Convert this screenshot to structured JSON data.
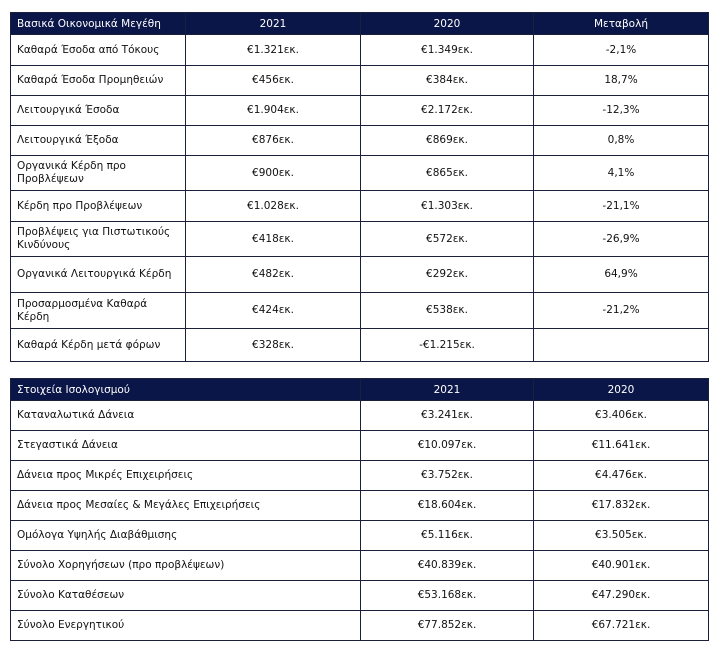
{
  "table1": {
    "header": [
      "Βασικά Οικονομικά Μεγέθη",
      "2021",
      "2020",
      "Μεταβολή"
    ],
    "rows": [
      [
        "Καθαρά Έσοδα από Τόκους",
        "€1.321εκ.",
        "€1.349εκ.",
        "-2,1%"
      ],
      [
        "Καθαρά Έσοδα Προμηθειών",
        "€456εκ.",
        "€384εκ.",
        "18,7%"
      ],
      [
        "Λειτουργικά Έσοδα",
        "€1.904εκ.",
        "€2.172εκ.",
        "-12,3%"
      ],
      [
        "Λειτουργικά Έξοδα",
        "€876εκ.",
        "€869εκ.",
        "0,8%"
      ],
      [
        "Οργανικά Κέρδη προ Προβλέψεων",
        "€900εκ.",
        "€865εκ.",
        "4,1%"
      ],
      [
        "Κέρδη προ Προβλέψεων",
        "€1.028εκ.",
        "€1.303εκ.",
        "-21,1%"
      ],
      [
        "Προβλέψεις για Πιστωτικούς Κινδύνους",
        "€418εκ.",
        "€572εκ.",
        "-26,9%"
      ],
      [
        "Οργανικά Λειτουργικά Κέρδη",
        "€482εκ.",
        "€292εκ.",
        "64,9%"
      ],
      [
        "Προσαρμοσμένα Καθαρά Κέρδη",
        "€424εκ.",
        "€538εκ.",
        "-21,2%"
      ],
      [
        "Καθαρά Κέρδη μετά φόρων",
        "€328εκ.",
        "-€1.215εκ."
      ]
    ]
  },
  "table2": {
    "header": [
      "Στοιχεία Ισολογισμού",
      "2021",
      "2020"
    ],
    "rows": [
      [
        "Καταναλωτικά Δάνεια",
        "€3.241εκ.",
        "€3.406εκ."
      ],
      [
        "Στεγαστικά Δάνεια",
        "€10.097εκ.",
        "€11.641εκ."
      ],
      [
        "Δάνεια προς Μικρές Επιχειρήσεις",
        "€3.752εκ.",
        "€4.476εκ."
      ],
      [
        "Δάνεια προς Μεσαίες & Μεγάλες Επιχειρήσεις",
        "€18.604εκ.",
        "€17.832εκ."
      ],
      [
        "Ομόλογα Υψηλής Διαβάθμισης",
        "€5.116εκ.",
        "€3.505εκ."
      ],
      [
        "Σύνολο Χορηγήσεων (προ προβλέψεων)",
        "€40.839εκ.",
        "€40.901εκ."
      ],
      [
        "Σύνολο Καταθέσεων",
        "€53.168εκ.",
        "€47.290εκ."
      ],
      [
        "Σύνολο Ενεργητικού",
        "€77.852εκ.",
        "€67.721εκ."
      ]
    ]
  }
}
